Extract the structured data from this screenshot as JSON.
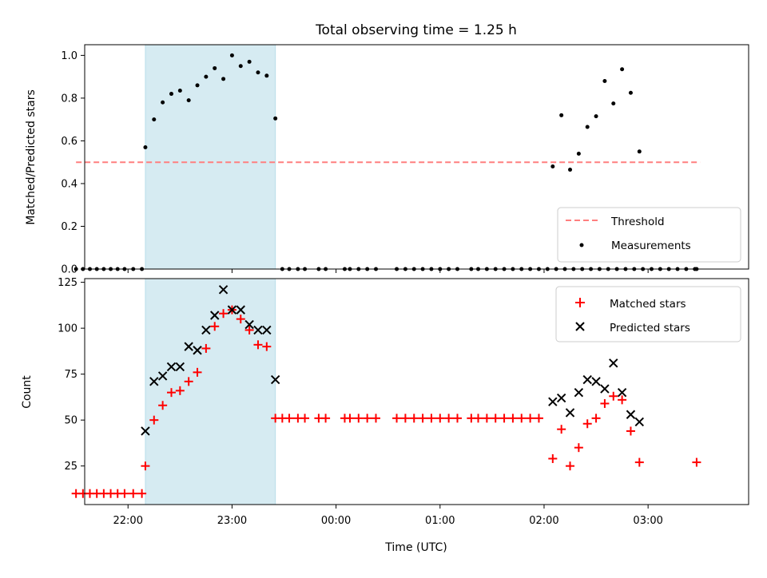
{
  "chart_data": [
    {
      "type": "scatter",
      "title": "Total observing time = 1.25 h",
      "xlabel": "",
      "ylabel": "Matched/Predicted stars",
      "xlim": [
        "21:35",
        "03:58"
      ],
      "ylim": [
        0,
        1.05
      ],
      "yticks": [
        "0.0",
        "0.2",
        "0.4",
        "0.6",
        "0.8",
        "1.0"
      ],
      "xticks": [
        "22:00",
        "23:00",
        "00:00",
        "01:00",
        "02:00",
        "03:00"
      ],
      "xticks_labeled": false,
      "grid": false,
      "legend_position": "lower-right",
      "highlight_span": {
        "start": "22:10",
        "end": "23:25",
        "color": "#add8e6"
      },
      "series": [
        {
          "name": "Threshold",
          "style": "dashed-line",
          "color": "#ff7f7f",
          "x": [
            "21:30",
            "03:30"
          ],
          "y": [
            0.5,
            0.5
          ]
        },
        {
          "name": "Measurements",
          "style": "dot",
          "color": "#000000",
          "points": [
            [
              "21:30",
              0
            ],
            [
              "21:34",
              0
            ],
            [
              "21:38",
              0
            ],
            [
              "21:42",
              0
            ],
            [
              "21:46",
              0
            ],
            [
              "21:50",
              0
            ],
            [
              "21:54",
              0
            ],
            [
              "21:58",
              0
            ],
            [
              "22:03",
              0
            ],
            [
              "22:08",
              0
            ],
            [
              "22:10",
              0.57
            ],
            [
              "22:15",
              0.7
            ],
            [
              "22:20",
              0.78
            ],
            [
              "22:25",
              0.82
            ],
            [
              "22:30",
              0.835
            ],
            [
              "22:35",
              0.79
            ],
            [
              "22:40",
              0.86
            ],
            [
              "22:45",
              0.9
            ],
            [
              "22:50",
              0.94
            ],
            [
              "22:55",
              0.89
            ],
            [
              "23:00",
              1.0
            ],
            [
              "23:05",
              0.95
            ],
            [
              "23:10",
              0.97
            ],
            [
              "23:15",
              0.92
            ],
            [
              "23:20",
              0.905
            ],
            [
              "23:25",
              0.705
            ],
            [
              "23:29",
              0
            ],
            [
              "23:33",
              0
            ],
            [
              "23:38",
              0
            ],
            [
              "23:42",
              0
            ],
            [
              "23:50",
              0
            ],
            [
              "23:54",
              0
            ],
            [
              "00:05",
              0
            ],
            [
              "00:08",
              0
            ],
            [
              "00:13",
              0
            ],
            [
              "00:18",
              0
            ],
            [
              "00:23",
              0
            ],
            [
              "00:35",
              0
            ],
            [
              "00:40",
              0
            ],
            [
              "00:45",
              0
            ],
            [
              "00:50",
              0
            ],
            [
              "00:55",
              0
            ],
            [
              "01:00",
              0
            ],
            [
              "01:05",
              0
            ],
            [
              "01:10",
              0
            ],
            [
              "01:18",
              0
            ],
            [
              "01:22",
              0
            ],
            [
              "01:27",
              0
            ],
            [
              "01:32",
              0
            ],
            [
              "01:37",
              0
            ],
            [
              "01:42",
              0
            ],
            [
              "01:47",
              0
            ],
            [
              "01:52",
              0
            ],
            [
              "01:57",
              0
            ],
            [
              "02:02",
              0
            ],
            [
              "02:07",
              0
            ],
            [
              "02:12",
              0
            ],
            [
              "02:17",
              0
            ],
            [
              "02:22",
              0
            ],
            [
              "02:27",
              0
            ],
            [
              "02:32",
              0
            ],
            [
              "02:37",
              0
            ],
            [
              "02:42",
              0
            ],
            [
              "02:47",
              0
            ],
            [
              "02:52",
              0
            ],
            [
              "02:57",
              0
            ],
            [
              "03:02",
              0
            ],
            [
              "03:07",
              0
            ],
            [
              "03:12",
              0
            ],
            [
              "03:17",
              0
            ],
            [
              "03:22",
              0
            ],
            [
              "03:27",
              0
            ],
            [
              "02:05",
              0.48
            ],
            [
              "02:10",
              0.72
            ],
            [
              "02:15",
              0.465
            ],
            [
              "02:20",
              0.54
            ],
            [
              "02:25",
              0.665
            ],
            [
              "02:30",
              0.715
            ],
            [
              "02:35",
              0.88
            ],
            [
              "02:40",
              0.775
            ],
            [
              "02:45",
              0.935
            ],
            [
              "02:50",
              0.825
            ],
            [
              "02:55",
              0.55
            ],
            [
              "03:28",
              0
            ]
          ]
        }
      ]
    },
    {
      "type": "scatter",
      "title": "",
      "xlabel": "Time (UTC)",
      "ylabel": "Count",
      "xlim": [
        "21:35",
        "03:58"
      ],
      "ylim": [
        4,
        127
      ],
      "yticks": [
        25,
        50,
        75,
        100,
        125
      ],
      "xticks": [
        "22:00",
        "23:00",
        "00:00",
        "01:00",
        "02:00",
        "03:00"
      ],
      "grid": false,
      "legend_position": "upper-right",
      "highlight_span": {
        "start": "22:10",
        "end": "23:25",
        "color": "#add8e6"
      },
      "series": [
        {
          "name": "Matched stars",
          "marker": "plus",
          "color": "#ff0000",
          "points": [
            [
              "21:30",
              10
            ],
            [
              "21:34",
              10
            ],
            [
              "21:38",
              10
            ],
            [
              "21:42",
              10
            ],
            [
              "21:46",
              10
            ],
            [
              "21:50",
              10
            ],
            [
              "21:54",
              10
            ],
            [
              "21:58",
              10
            ],
            [
              "22:03",
              10
            ],
            [
              "22:08",
              10
            ],
            [
              "22:10",
              25
            ],
            [
              "22:15",
              50
            ],
            [
              "22:20",
              58
            ],
            [
              "22:25",
              65
            ],
            [
              "22:30",
              66
            ],
            [
              "22:35",
              71
            ],
            [
              "22:40",
              76
            ],
            [
              "22:45",
              89
            ],
            [
              "22:50",
              101
            ],
            [
              "22:55",
              108
            ],
            [
              "23:00",
              110
            ],
            [
              "23:05",
              105
            ],
            [
              "23:10",
              99
            ],
            [
              "23:15",
              91
            ],
            [
              "23:20",
              90
            ],
            [
              "23:25",
              51
            ],
            [
              "23:29",
              51
            ],
            [
              "23:33",
              51
            ],
            [
              "23:38",
              51
            ],
            [
              "23:42",
              51
            ],
            [
              "23:50",
              51
            ],
            [
              "23:54",
              51
            ],
            [
              "00:05",
              51
            ],
            [
              "00:08",
              51
            ],
            [
              "00:13",
              51
            ],
            [
              "00:18",
              51
            ],
            [
              "00:23",
              51
            ],
            [
              "00:35",
              51
            ],
            [
              "00:40",
              51
            ],
            [
              "00:45",
              51
            ],
            [
              "00:50",
              51
            ],
            [
              "00:55",
              51
            ],
            [
              "01:00",
              51
            ],
            [
              "01:05",
              51
            ],
            [
              "01:10",
              51
            ],
            [
              "01:18",
              51
            ],
            [
              "01:22",
              51
            ],
            [
              "01:27",
              51
            ],
            [
              "01:32",
              51
            ],
            [
              "01:37",
              51
            ],
            [
              "01:42",
              51
            ],
            [
              "01:47",
              51
            ],
            [
              "01:52",
              51
            ],
            [
              "01:57",
              51
            ],
            [
              "02:05",
              29
            ],
            [
              "02:10",
              45
            ],
            [
              "02:15",
              25
            ],
            [
              "02:20",
              35
            ],
            [
              "02:25",
              48
            ],
            [
              "02:30",
              51
            ],
            [
              "02:35",
              59
            ],
            [
              "02:40",
              63
            ],
            [
              "02:45",
              61
            ],
            [
              "02:50",
              44
            ],
            [
              "02:55",
              27
            ],
            [
              "03:28",
              27
            ]
          ]
        },
        {
          "name": "Predicted stars",
          "marker": "x",
          "color": "#000000",
          "points": [
            [
              "22:10",
              44
            ],
            [
              "22:15",
              71
            ],
            [
              "22:20",
              74
            ],
            [
              "22:25",
              79
            ],
            [
              "22:30",
              79
            ],
            [
              "22:35",
              90
            ],
            [
              "22:40",
              88
            ],
            [
              "22:45",
              99
            ],
            [
              "22:50",
              107
            ],
            [
              "22:55",
              121
            ],
            [
              "23:00",
              110
            ],
            [
              "23:05",
              110
            ],
            [
              "23:10",
              102
            ],
            [
              "23:15",
              99
            ],
            [
              "23:20",
              99
            ],
            [
              "23:25",
              72
            ],
            [
              "02:05",
              60
            ],
            [
              "02:10",
              62
            ],
            [
              "02:15",
              54
            ],
            [
              "02:20",
              65
            ],
            [
              "02:25",
              72
            ],
            [
              "02:30",
              71
            ],
            [
              "02:35",
              67
            ],
            [
              "02:40",
              81
            ],
            [
              "02:45",
              65
            ],
            [
              "02:50",
              53
            ],
            [
              "02:55",
              49
            ]
          ]
        }
      ]
    }
  ]
}
